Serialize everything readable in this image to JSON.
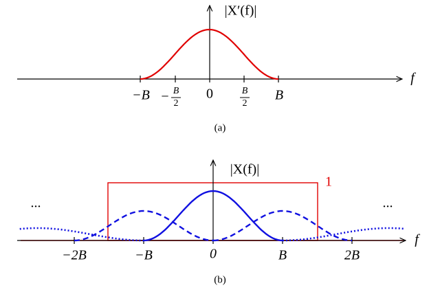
{
  "panel_a": {
    "y_label": "|X′(f)|",
    "x_label": "f",
    "ticks": [
      "−B",
      "0",
      "B"
    ],
    "half_ticks": [
      {
        "sign": "−",
        "num": "B",
        "den": "2"
      },
      {
        "sign": "",
        "num": "B",
        "den": "2"
      }
    ],
    "caption": "(a)"
  },
  "panel_b": {
    "y_label": "|X(f)|",
    "x_label": "f",
    "ticks": [
      "−2B",
      "−B",
      "0",
      "B",
      "2B"
    ],
    "height_label": "1",
    "ellipsis_left": "...",
    "ellipsis_right": "...",
    "caption": "(b)"
  }
}
